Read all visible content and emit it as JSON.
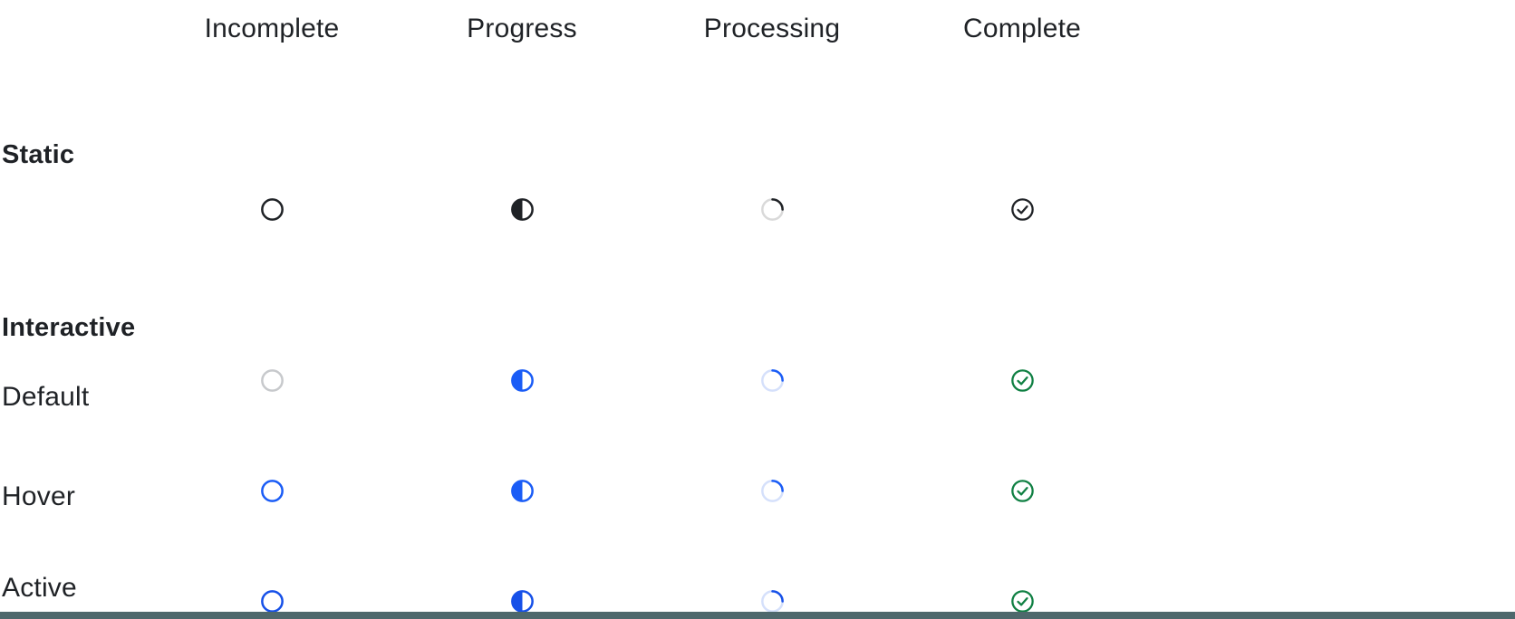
{
  "page": {
    "background": "#ffffff",
    "bottom_bar_color": "#4e686c",
    "text_color": "#1f2226"
  },
  "columns": [
    {
      "id": "incomplete",
      "label": "Incomplete"
    },
    {
      "id": "progress",
      "label": "Progress"
    },
    {
      "id": "processing",
      "label": "Processing"
    },
    {
      "id": "complete",
      "label": "Complete"
    }
  ],
  "sections": {
    "static": "Static",
    "interactive": "Interactive"
  },
  "rows": [
    {
      "id": "static",
      "label": "",
      "icons": {
        "incomplete": {
          "stroke": "#1f2226"
        },
        "progress": {
          "color": "#1f2226"
        },
        "processing": {
          "track": "#d9d9d9",
          "arc": "#1f2226"
        },
        "complete": {
          "color": "#1f2226"
        }
      }
    },
    {
      "id": "default",
      "label": "Default",
      "icons": {
        "incomplete": {
          "stroke": "#c7c9cc"
        },
        "progress": {
          "color": "#1a5cf6"
        },
        "processing": {
          "track": "#d5e0fb",
          "arc": "#1a5cf6"
        },
        "complete": {
          "color": "#108043"
        }
      }
    },
    {
      "id": "hover",
      "label": "Hover",
      "icons": {
        "incomplete": {
          "stroke": "#1a5cf6"
        },
        "progress": {
          "color": "#1a5cf6"
        },
        "processing": {
          "track": "#d5e0fb",
          "arc": "#1a5cf6"
        },
        "complete": {
          "color": "#108043"
        }
      }
    },
    {
      "id": "active",
      "label": "Active",
      "icons": {
        "incomplete": {
          "stroke": "#1650e8"
        },
        "progress": {
          "color": "#1650e8"
        },
        "processing": {
          "track": "#d5e0fb",
          "arc": "#1650e8"
        },
        "complete": {
          "color": "#108043"
        }
      }
    }
  ]
}
